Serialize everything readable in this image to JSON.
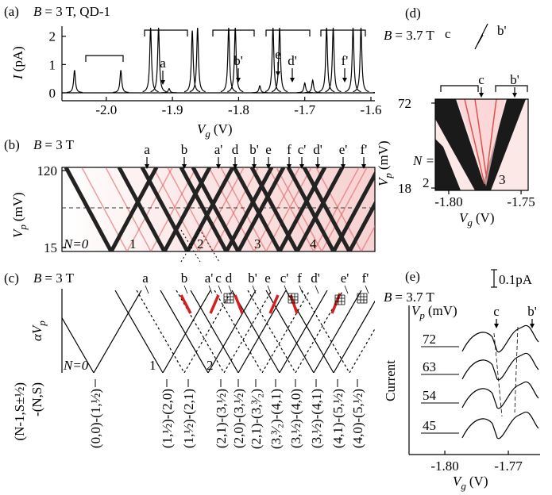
{
  "panel_a": {
    "label": "(a)",
    "field": {
      "sym": "B",
      "rest": "= 3 T, QD-1"
    },
    "ylabel": {
      "sym": "I",
      "unit": "(pA)"
    },
    "xlabel": {
      "sym": "V",
      "sub": "g",
      "unit": "(V)"
    },
    "xlim": [
      -2.067,
      -1.594
    ],
    "ylim": [
      -0.28,
      2.3
    ],
    "xticks": [
      {
        "value": -2.0,
        "label": "-2.0"
      },
      -1.9,
      -1.8,
      -1.7,
      -1.6
    ],
    "yticks": [
      0,
      1,
      2
    ],
    "peaks": {
      "x": [
        -2.048,
        -1.978,
        -1.933,
        -1.921,
        -1.905,
        -1.87,
        -1.862,
        -1.815,
        -1.805,
        -1.768,
        -1.748,
        -1.738,
        -1.7,
        -1.688,
        -1.667,
        -1.657,
        -1.627,
        -1.615,
        -1.585
      ],
      "height": [
        0.8,
        0.8,
        2.3,
        2.3,
        0.15,
        2.2,
        2.3,
        2.3,
        2.3,
        0.25,
        2.3,
        2.3,
        0.35,
        0.45,
        2.3,
        2.3,
        2.3,
        2.3,
        0.35
      ]
    },
    "annotations": [
      "a",
      "b'",
      "e",
      "d'",
      "f'"
    ]
  },
  "panel_b": {
    "label": "(b)",
    "field": {
      "sym": "B",
      "rest": "= 3 T"
    },
    "ylabel": {
      "sym": "V",
      "sub": "p",
      "unit": "(mV)"
    },
    "ylim": [
      15,
      120
    ],
    "yticks": [
      15,
      120
    ],
    "annotations": [
      "a",
      "b",
      "a'",
      "d",
      "b'",
      "e",
      "f",
      "c'",
      "d'",
      "e'",
      "f'"
    ],
    "electron_numbers": [
      "N=0",
      "1",
      "2",
      "3",
      "4"
    ]
  },
  "panel_c": {
    "label": "(c)",
    "field": {
      "sym": "B",
      "rest": "= 3 T"
    },
    "ylabel": {
      "sym": "αV",
      "sub": "p"
    },
    "annotations": [
      "a",
      "b",
      "a'",
      "c",
      "d",
      "b'",
      "e",
      "c'",
      "f",
      "d'",
      "e'",
      "f'"
    ],
    "electron_numbers": [
      "N=0",
      "1",
      "2"
    ],
    "transition_header": [
      "(N-1,S±½)",
      "-(N,S)"
    ],
    "transitions": [
      "(0,0)-(1,½)",
      "(1,½)-(2,0)",
      "(1,½)-(2,1)",
      "(2,1)-(3,½)",
      "(2,0)-(3,½)",
      "(2,1)-(3,³⁄₂)",
      "(3,³⁄₂)-(4,1)",
      "(3,½)-(4,0)",
      "(3,½)-(4,1)",
      "(4,1)-(5,½)",
      "(4,0)-(5,½)"
    ]
  },
  "panel_d": {
    "label": "(d)",
    "field": {
      "sym": "B",
      "rest": "= 3.7 T"
    },
    "ylabel": {
      "sym": "V",
      "sub": "p",
      "unit": "(mV)"
    },
    "xlabel": {
      "sym": "V",
      "sub": "g",
      "unit": "(V)"
    },
    "xlim": [
      -1.8093,
      -1.7451
    ],
    "ylim": [
      16.5,
      74.5
    ],
    "xticks": [
      {
        "value": -1.8,
        "label": "-1.80"
      },
      {
        "value": -1.75,
        "label": "-1.75"
      }
    ],
    "yticks": [
      18,
      72
    ],
    "inset_labels": [
      "c",
      "b'"
    ],
    "annotations": [
      "c",
      "b'"
    ],
    "n_label": "N =",
    "electron_numbers": [
      "2",
      "3"
    ]
  },
  "panel_e": {
    "label": "(e)",
    "scale_bar": "0.1pA",
    "field": {
      "sym": "B",
      "rest": "= 3.7 T"
    },
    "legend_title": {
      "sym": "V",
      "sub": "p",
      "unit": "(mV)"
    },
    "annotations": [
      "c",
      "b'"
    ],
    "trace_labels": [
      "72",
      "63",
      "54",
      "45"
    ],
    "ylabel": "Current",
    "xlabel": {
      "sym": "V",
      "sub": "g",
      "unit": "(V)"
    },
    "xlim": [
      -1.8169,
      -1.755
    ],
    "xticks": [
      {
        "value": -1.8,
        "label": "-1.80"
      },
      {
        "value": -1.77,
        "label": "-1.77"
      }
    ]
  }
}
